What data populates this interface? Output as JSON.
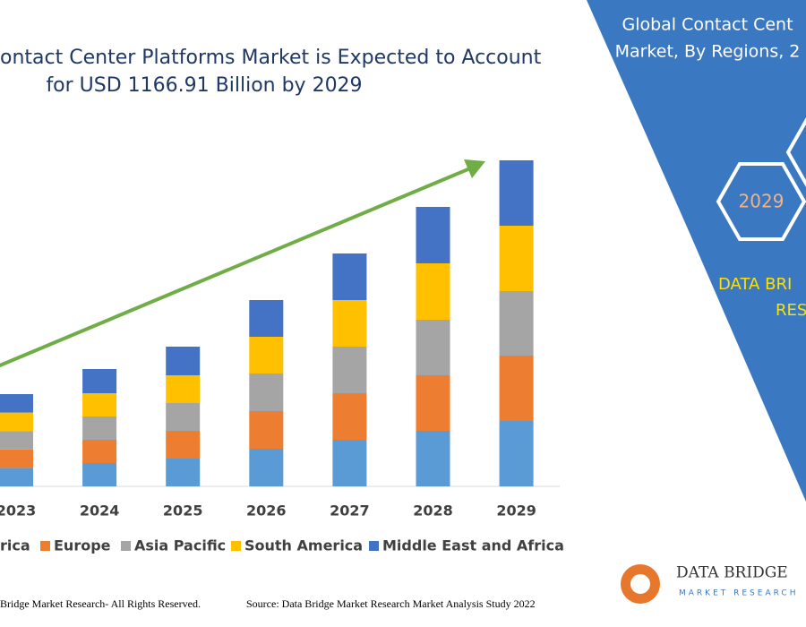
{
  "chart_data": {
    "type": "stacked-bar",
    "title": [
      "ontact Center Platforms Market is Expected to Account",
      "for USD 1166.91 Billion by 2029"
    ],
    "categories": [
      "2023",
      "2024",
      "2025",
      "2026",
      "2027",
      "2028",
      "2029"
    ],
    "series": [
      {
        "name": "rica",
        "color": "#5b9bd5",
        "values": [
          20.6,
          26,
          31,
          42,
          52,
          62,
          73
        ]
      },
      {
        "name": "Europe",
        "color": "#ed7d31",
        "values": [
          20.6,
          26,
          31,
          42,
          52,
          62,
          73
        ]
      },
      {
        "name": "Asia Pacific",
        "color": "#a5a5a5",
        "values": [
          20.6,
          26,
          31,
          42,
          52,
          62,
          72
        ]
      },
      {
        "name": "South America",
        "color": "#ffc000",
        "values": [
          20.6,
          26,
          31,
          41,
          52,
          63,
          73
        ]
      },
      {
        "name": "Middle East and Africa",
        "color": "#4472c4",
        "values": [
          20.6,
          27,
          32,
          41,
          52,
          63,
          73
        ]
      }
    ],
    "ylim": [
      0,
      400
    ]
  },
  "side_panel": {
    "title": [
      "Global Contact Cent",
      "Market, By Regions, 2"
    ],
    "hexagon": "2029",
    "brand": [
      "DATA BRI",
      "RES"
    ]
  },
  "logo": {
    "name": "DATA BRIDGE",
    "tagline": "MARKET RESEARCH"
  },
  "footer": {
    "rights": "Bridge Market Research- All Rights Reserved.",
    "source": "Source: Data Bridge Market Research Market Analysis Study 2022"
  }
}
